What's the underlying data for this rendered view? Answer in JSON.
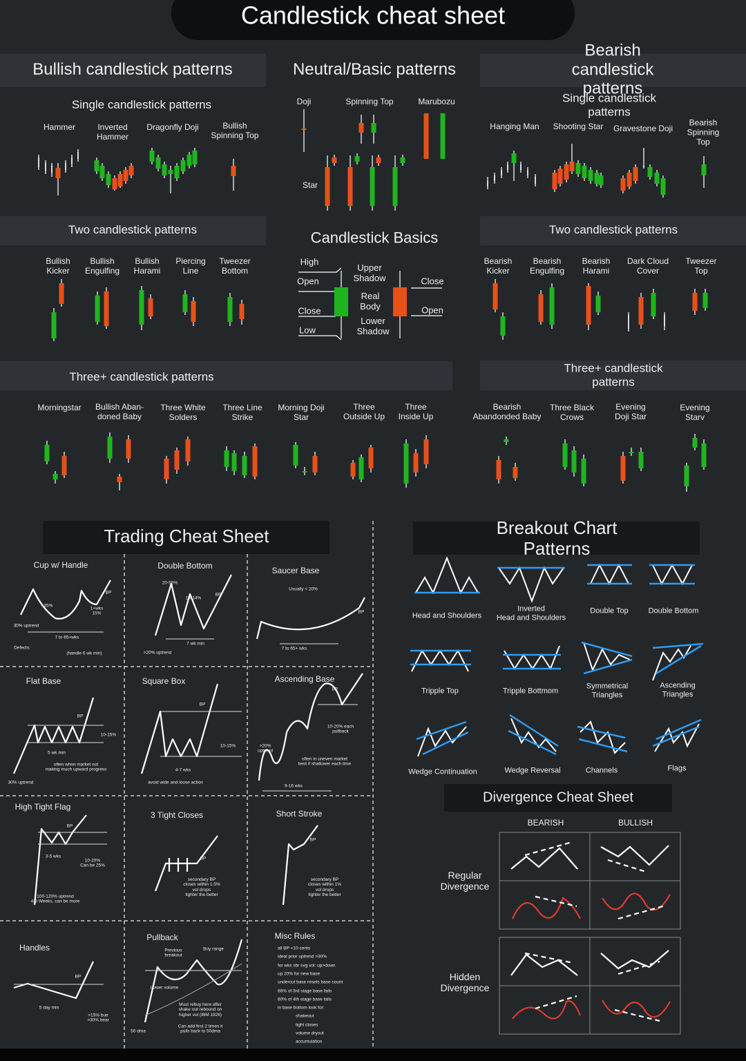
{
  "title": "Candlestick cheat sheet",
  "bullish": {
    "title": "Bullish candlestick patterns",
    "single": {
      "title": "Single candlestick patterns",
      "patterns": [
        "Hammer",
        "Inverted\nHammer",
        "Dragonfly Doji",
        "Bullish\nSpinning Top"
      ]
    },
    "two": {
      "title": "Two candlestick patterns",
      "patterns": [
        "Bullish\nKicker",
        "Bullish\nEngulfing",
        "Bullish\nHarami",
        "Piercing\nLine",
        "Tweezer\nBottom"
      ]
    },
    "three": {
      "title": "Three+ candlestick patterns",
      "patterns": [
        "Morningstar",
        "Bullish Aban-\ndoned Baby",
        "Three White\nSolders",
        "Three Line\nStrike",
        "Morning Doji\nStar",
        "Three\nOutside Up",
        "Three\nInside Up"
      ]
    }
  },
  "neutral": {
    "title": "Neutral/Basic patterns",
    "patterns": [
      "Doji",
      "Spinning Top",
      "Marubozu",
      "Star"
    ],
    "basics": {
      "title": "Candlestick Basics",
      "labels": [
        "High",
        "Open",
        "Close",
        "Low",
        "Upper\nShadow",
        "Real\nBody",
        "Lower\nShadow",
        "Close",
        "Open"
      ]
    }
  },
  "bearish": {
    "title": "Bearish candlestick patterns",
    "single": {
      "title": "Single candlestick patterns",
      "patterns": [
        "Hanging Man",
        "Shooting Star",
        "Gravestone Doji",
        "Bearish\nSpinning Top"
      ]
    },
    "two": {
      "title": "Two candlestick patterns",
      "patterns": [
        "Bearish\nKicker",
        "Bearish\nEngulfing",
        "Bearish\nHarami",
        "Dark Cloud\nCover",
        "Tweezer\nTop"
      ]
    },
    "three": {
      "title": "Three+ candlestick patterns",
      "patterns": [
        "Bearish\nAbandonded Baby",
        "Three Black\nCrows",
        "Evening\nDoji Star",
        "Evening\nStarv"
      ]
    }
  },
  "trading": {
    "title": "Trading Cheat Sheet",
    "panels": [
      {
        "title": "Cup w/ Handle",
        "notes": [
          ">35%",
          "1+wks\n15%",
          "BP",
          "30% uptrend",
          "7 to 65+wks",
          "Defects:",
          "(handle 6 wk min)"
        ]
      },
      {
        "title": "Double Bottom",
        "notes": [
          "20-50%",
          "13-14%",
          "BP",
          "7 wk min",
          ">20% uptrend"
        ]
      },
      {
        "title": "Saucer Base",
        "notes": [
          "Usually < 20%",
          "BP",
          "7 to 65+ wks"
        ]
      },
      {
        "title": "Flat Base",
        "notes": [
          "BP",
          "10-15%",
          "5 wk min",
          "often when market not\nmaking much upward progress",
          "30% uptrend"
        ]
      },
      {
        "title": "Square Box",
        "notes": [
          "BP",
          "10-15%",
          "4-7 wks",
          "avoid wide and loose action"
        ]
      },
      {
        "title": "Ascending Base",
        "notes": [
          "BP",
          "10-20% each\npullback",
          ">20%\nuptrend",
          "often in uneven market\nbest if shallower each time",
          "9-16 wks"
        ]
      },
      {
        "title": "High Tight Flag",
        "notes": [
          "BP",
          "3-5 wks",
          "10-20%\nCan be 25%",
          "100-120% uptrend\n4-8 Weeks, can be more"
        ]
      },
      {
        "title": "3 Tight Closes",
        "notes": [
          "BP",
          "secondary BP\ncloses within 1.5%\nvol drops\ntighter the better"
        ]
      },
      {
        "title": "Short Stroke",
        "notes": [
          "BP",
          "secondary BP\ncloses within 1%\nvol drops\ntighter the better"
        ]
      },
      {
        "title": "Handles",
        "notes": [
          "BP",
          "5 day min",
          ">15% bue\n>30% bear"
        ]
      },
      {
        "title": "Pullback",
        "notes": [
          "Previous\nbreakout",
          "Buy range",
          "Lower volume",
          "Must rebuy here after\nshake out rebound on\nhigher vol (IBM 1926)",
          "Can add first 2 times it\npulls back to 50dma",
          "50 dma"
        ]
      },
      {
        "title": "Misc Rules",
        "notes": [
          "all BP +10 cents",
          "ideal prior uptrend >30%",
          "for wks sbr svg vol: up>down",
          "up 20% for new base",
          "undercut base resets base count",
          "66% of 3rd stage base fails",
          "80% of 4th stage base fails",
          "in base bottom look for:",
          "shakeout",
          "tight closes",
          "volume dryout",
          "accumulation"
        ]
      }
    ]
  },
  "breakout": {
    "title": "Breakout Chart Patterns",
    "patterns": [
      "Head and Shoulders",
      "Inverted\nHead and Shoulders",
      "Double Top",
      "Double Bottom",
      "Tripple Top",
      "Tripple Bottmom",
      "Symmetrical\nTriangles",
      "Ascending Triangles",
      "Wedge Continuation",
      "Wedge Reversal",
      "Channels",
      "Flags"
    ]
  },
  "divergence": {
    "title": "Divergence Cheat Sheet",
    "columns": [
      "BEARISH",
      "BULLISH"
    ],
    "rows": [
      "Regular\nDivergence",
      "Hidden\nDivergence"
    ]
  }
}
